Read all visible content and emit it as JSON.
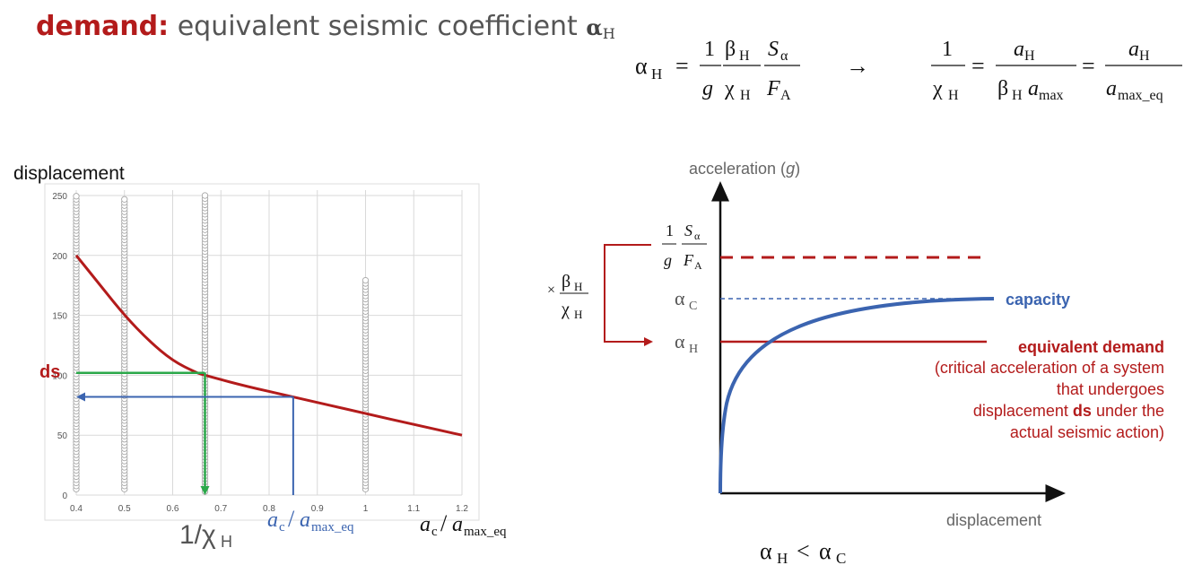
{
  "title": {
    "keyword": "demand:",
    "text": "equivalent seismic coefficient",
    "symbol": "α",
    "symbol_sub": "H"
  },
  "formulas": {
    "alpha_h": "α",
    "alpha_h_sub": "H",
    "one": "1",
    "g": "g",
    "beta": "β",
    "beta_sub": "H",
    "chi": "χ",
    "chi_sub": "H",
    "s": "S",
    "s_sub": "α",
    "f": "F",
    "f_sub": "A",
    "arrow": "→",
    "a": "a",
    "a_sub": "H",
    "amax": "a",
    "amax_sub": "max",
    "amaxeq_sub": "max_eq",
    "eq": "=",
    "times": "×"
  },
  "left_chart": {
    "ylabel": "displacement",
    "ds_label": "ds",
    "xlabel_main": "1/χ",
    "xlabel_main_sub": "H",
    "xlabel_right": {
      "a": "a",
      "a_sub": "c",
      "slash": "/",
      "b": "a",
      "b_sub": "max_eq"
    },
    "xlabel_marker": {
      "a": "a",
      "a_sub": "c",
      "slash": "/",
      "b": "a",
      "b_sub": "max_eq"
    },
    "y_ticks": [
      "250",
      "200",
      "150",
      "100",
      "50",
      "0"
    ],
    "x_ticks": [
      "0.4",
      "0.5",
      "0.6",
      "0.7",
      "0.8",
      "0.9",
      "1",
      "1.1",
      "1.2"
    ]
  },
  "chart_data": {
    "type": "scatter",
    "xlim": [
      0.4,
      1.2
    ],
    "ylim": [
      0,
      250
    ],
    "grid": true,
    "series": [
      {
        "values": [
          [
            0.4,
            200
          ],
          [
            0.45,
            175
          ],
          [
            0.5,
            150
          ],
          [
            0.55,
            129
          ],
          [
            0.6,
            112
          ],
          [
            0.65,
            102
          ],
          [
            0.667,
            100
          ],
          [
            0.75,
            91
          ],
          [
            0.85,
            82
          ],
          [
            1.0,
            68
          ],
          [
            1.1,
            59
          ],
          [
            1.2,
            50
          ]
        ]
      }
    ],
    "scatter_columns": [
      {
        "x": 0.4,
        "y_range": [
          5,
          250
        ]
      },
      {
        "x": 0.5,
        "y_range": [
          5,
          248
        ]
      },
      {
        "x": 0.667,
        "y_range": [
          3,
          250
        ]
      },
      {
        "x": 1.0,
        "y_range": [
          5,
          180
        ]
      }
    ],
    "reference_lines": [
      {
        "x": 0.667,
        "y": 102,
        "color": "#2ba84a"
      },
      {
        "x": 0.85,
        "y": 82,
        "color": "#3b64b0"
      }
    ]
  },
  "right_diagram": {
    "ylabel": "acceleration (",
    "ylabel_g": "g",
    "ylabel_close": ")",
    "xlabel": "displacement",
    "alpha_c": "α",
    "alpha_c_sub": "C",
    "alpha_h": "α",
    "alpha_h_sub": "H",
    "capacity_label": "capacity",
    "demand_label": "equivalent demand",
    "demand_note": [
      "(critical acceleration of a system",
      "that undergoes"
    ],
    "demand_note_pre": "displacement ",
    "demand_note_ds": "ds",
    "demand_note_post": " under the",
    "demand_note_last": "actual seismic action)",
    "inequality": {
      "a": "α",
      "a_sub": "H",
      "lt": "<",
      "b": "α",
      "b_sub": "C"
    },
    "colors": {
      "capacity": "#3b64b0",
      "demand": "#b31b1b"
    }
  }
}
